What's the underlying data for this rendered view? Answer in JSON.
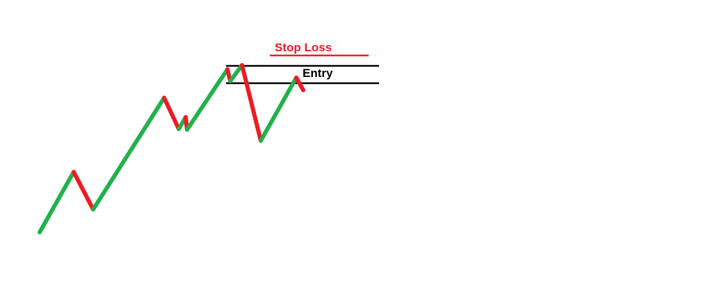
{
  "diagram": {
    "labels": {
      "stop_loss": "Stop Loss",
      "entry": "Entry"
    },
    "colors": {
      "up_move": "#22b14c",
      "down_move": "#ed1c24",
      "level_line": "#000000",
      "stop_loss_label": "#ed1c24",
      "entry_label": "#000000",
      "background": "#ffffff"
    },
    "price_path_moves": [
      {
        "direction": "up",
        "color": "green"
      },
      {
        "direction": "down",
        "color": "red"
      },
      {
        "direction": "up",
        "color": "green"
      },
      {
        "direction": "down",
        "color": "red"
      },
      {
        "direction": "up",
        "color": "green"
      },
      {
        "direction": "down",
        "color": "red"
      },
      {
        "direction": "up",
        "color": "green"
      },
      {
        "direction": "down",
        "color": "red"
      },
      {
        "direction": "up",
        "color": "green"
      },
      {
        "direction": "down",
        "color": "red"
      },
      {
        "direction": "up",
        "color": "green"
      },
      {
        "direction": "down",
        "color": "red"
      }
    ]
  }
}
